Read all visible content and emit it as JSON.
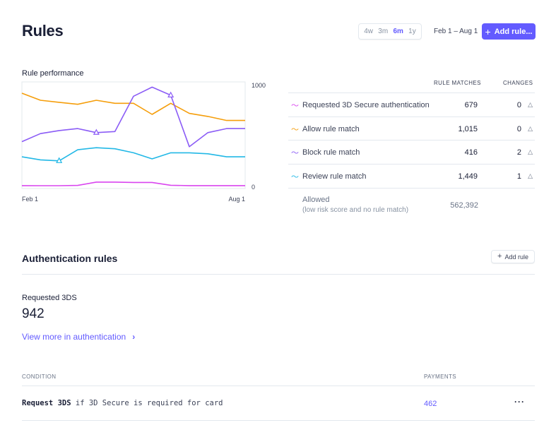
{
  "header": {
    "title": "Rules",
    "ranges": [
      {
        "label": "4w",
        "active": false
      },
      {
        "label": "3m",
        "active": false
      },
      {
        "label": "6m",
        "active": true
      },
      {
        "label": "1y",
        "active": false
      }
    ],
    "date_range": "Feb 1 – Aug 1",
    "add_rule_label": "Add rule..."
  },
  "performance": {
    "title": "Rule performance"
  },
  "chart_data": {
    "type": "line",
    "title": "Rule performance",
    "x_tick_labels": [
      "Feb 1",
      "Aug 1"
    ],
    "y_tick_labels": [
      "0",
      "1000"
    ],
    "ylim": [
      0,
      1000
    ],
    "y_axis_position": "right",
    "grid": false,
    "series": [
      {
        "name": "Requested 3D Secure authentication",
        "color": "#d946ef",
        "values": [
          15,
          14,
          14,
          17,
          50,
          50,
          46,
          46,
          18,
          15,
          15,
          15,
          15
        ]
      },
      {
        "name": "Allow rule match",
        "color": "#f59e0b",
        "values": [
          930,
          860,
          840,
          820,
          860,
          830,
          830,
          720,
          830,
          730,
          700,
          660,
          660
        ]
      },
      {
        "name": "Block rule match",
        "color": "#8b5cf6",
        "values": [
          450,
          530,
          560,
          580,
          540,
          550,
          900,
          990,
          910,
          400,
          540,
          580,
          580
        ],
        "markers": [
          4,
          8
        ]
      },
      {
        "name": "Review rule match",
        "color": "#22b8e6",
        "values": [
          300,
          270,
          260,
          370,
          390,
          380,
          340,
          280,
          340,
          340,
          330,
          300,
          300
        ],
        "markers": [
          2
        ]
      }
    ]
  },
  "table": {
    "col_matches": "RULE MATCHES",
    "col_changes": "CHANGES",
    "rows": [
      {
        "label": "Requested 3D Secure authentication",
        "matches": "679",
        "changes": "0",
        "color": "#d946ef"
      },
      {
        "label": "Allow rule match",
        "matches": "1,015",
        "changes": "0",
        "color": "#f59e0b"
      },
      {
        "label": "Block rule match",
        "matches": "416",
        "changes": "2",
        "color": "#8b5cf6"
      },
      {
        "label": "Review rule match",
        "matches": "1,449",
        "changes": "1",
        "color": "#22b8e6"
      }
    ],
    "allowed": {
      "title": "Allowed",
      "subtitle": "(low risk score and no rule match)",
      "value": "562,392"
    }
  },
  "auth": {
    "title": "Authentication rules",
    "add_rule_label": "Add rule",
    "requested_label": "Requested 3DS",
    "requested_count": "942",
    "view_more_label": "View more in authentication",
    "col_condition": "CONDITION",
    "col_payments": "PAYMENTS",
    "rule": {
      "action": "Request 3DS",
      "condition": "if 3D Secure is required for card",
      "payments": "462"
    }
  },
  "icons": {
    "trend": "trend-line-icon",
    "triangle": "delta-triangle-icon",
    "plus": "plus-icon",
    "chevron": "chevron-right-icon",
    "more": "more-dots-icon"
  }
}
